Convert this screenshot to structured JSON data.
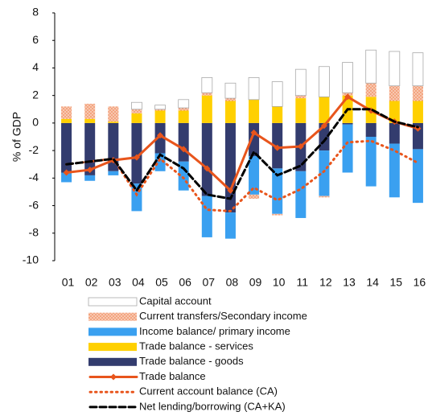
{
  "chart_data": {
    "type": "bar",
    "ylabel": "% of GDP",
    "categories": [
      "01",
      "02",
      "03",
      "04",
      "05",
      "06",
      "07",
      "08",
      "09",
      "10",
      "11",
      "12",
      "13",
      "14",
      "15",
      "16"
    ],
    "ylim": [
      -10,
      8
    ],
    "yticks": [
      -10,
      -8,
      -6,
      -4,
      -2,
      0,
      2,
      4,
      6,
      8
    ],
    "series": [
      {
        "name": "Capital account",
        "type": "bar",
        "color": "#ffffff",
        "values": [
          0,
          0,
          0,
          0.5,
          0.3,
          0.6,
          1.1,
          1.1,
          1.6,
          1.8,
          1.9,
          2.2,
          2.2,
          2.4,
          2.5,
          2.4
        ]
      },
      {
        "name": "Current transfers/Secondary income",
        "type": "bar",
        "pattern": true,
        "color": "#f08a5d",
        "values": [
          0.9,
          1.1,
          1.1,
          0.3,
          0.1,
          0.2,
          0.2,
          0.2,
          -0.3,
          -0.1,
          0.2,
          -0.1,
          0.2,
          1.0,
          1.1,
          1.1
        ]
      },
      {
        "name": "Income balance/ primary income",
        "type": "bar",
        "color": "#3aa0f0",
        "values": [
          -0.7,
          -0.4,
          -0.3,
          -2.0,
          -1.3,
          -2.1,
          -3.0,
          -1.9,
          -2.8,
          -3.3,
          -3.4,
          -3.3,
          -3.5,
          -3.6,
          -3.9,
          -3.9
        ]
      },
      {
        "name": "Trade balance - services",
        "type": "bar",
        "color": "#ffd000",
        "values": [
          0.3,
          0.3,
          0.1,
          0.7,
          0.9,
          0.9,
          2.0,
          1.6,
          1.7,
          1.2,
          1.8,
          1.9,
          2.0,
          1.9,
          1.6,
          1.6
        ]
      },
      {
        "name": "Trade balance - goods",
        "type": "bar",
        "color": "#333c6e",
        "values": [
          -3.6,
          -3.8,
          -3.5,
          -4.4,
          -2.2,
          -2.8,
          -5.3,
          -6.5,
          -2.4,
          -3.3,
          -3.5,
          -2.0,
          -0.1,
          -1.0,
          -1.5,
          -1.9
        ]
      },
      {
        "name": "Trade balance",
        "type": "line",
        "style": "solid",
        "marker": "diamond",
        "color": "#e8551c",
        "values": [
          -3.6,
          -3.4,
          -2.7,
          -2.5,
          -0.9,
          -1.9,
          -3.3,
          -4.9,
          -0.7,
          -1.8,
          -1.7,
          -0.2,
          1.9,
          0.9,
          0.1,
          -0.4
        ]
      },
      {
        "name": "Current account balance (CA)",
        "type": "line",
        "style": "dotted",
        "color": "#e8551c",
        "values": [
          -3.0,
          -2.8,
          -2.6,
          -5.2,
          -2.6,
          -4.0,
          -6.3,
          -6.4,
          -4.7,
          -5.6,
          -4.8,
          -3.5,
          -1.4,
          -1.3,
          -2.0,
          -2.9
        ]
      },
      {
        "name": "Net lending/borrowing (CA+KA)",
        "type": "line",
        "style": "dashed",
        "color": "#000000",
        "values": [
          -3.0,
          -2.8,
          -2.6,
          -4.9,
          -2.3,
          -3.3,
          -5.2,
          -5.5,
          -2.1,
          -3.8,
          -3.1,
          -1.3,
          1.0,
          1.0,
          0.1,
          -0.3
        ]
      }
    ]
  }
}
